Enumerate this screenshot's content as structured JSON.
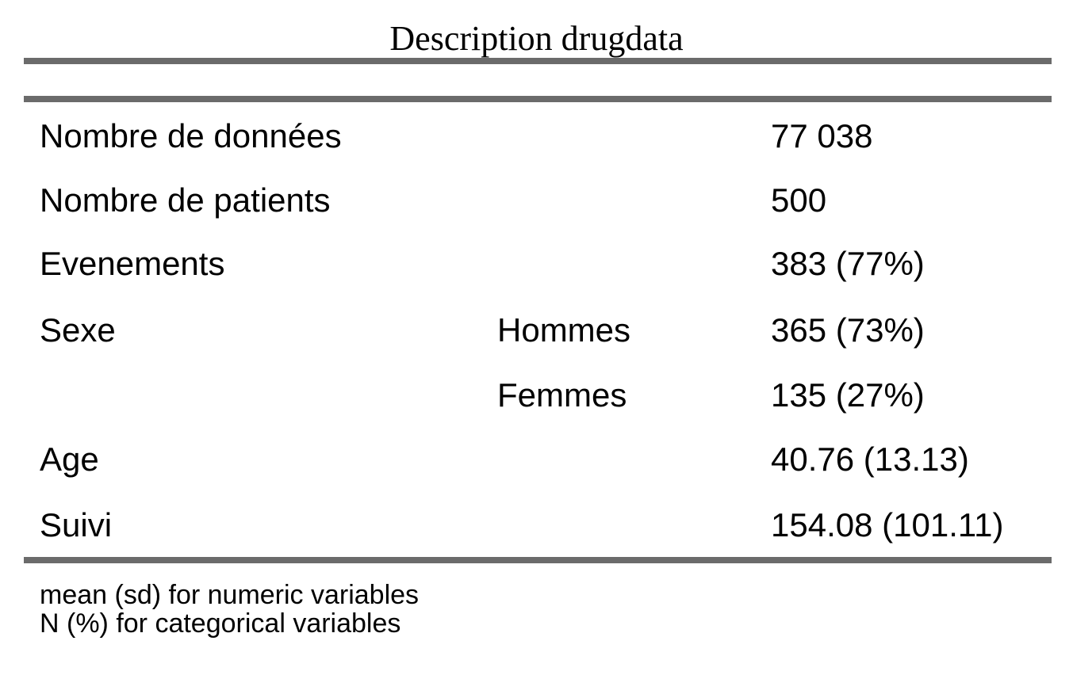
{
  "title": "Description drugdata",
  "rows": [
    {
      "label": "Nombre de données",
      "sublabel": "",
      "value": "77 038"
    },
    {
      "label": "Nombre de patients",
      "sublabel": "",
      "value": "500"
    },
    {
      "label": "Evenements",
      "sublabel": "",
      "value": "383 (77%)"
    },
    {
      "label": "Sexe",
      "sublabel": "Hommes",
      "value": "365 (73%)"
    },
    {
      "label": "",
      "sublabel": "Femmes",
      "value": "135 (27%)"
    },
    {
      "label": "Age",
      "sublabel": "",
      "value": "40.76 (13.13)"
    },
    {
      "label": "Suivi",
      "sublabel": "",
      "value": "154.08 (101.11)"
    }
  ],
  "footnotes": [
    "mean (sd) for numeric variables",
    "N (%) for categorical variables"
  ]
}
